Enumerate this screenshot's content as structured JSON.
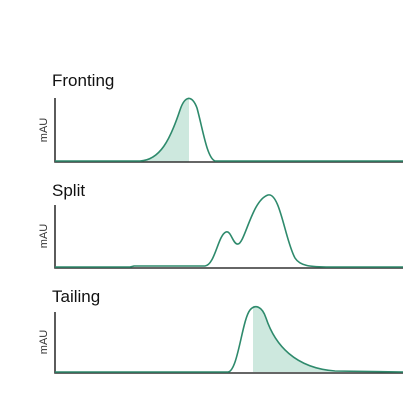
{
  "panels": [
    {
      "title": "Fronting",
      "y_label": "mAU"
    },
    {
      "title": "Split",
      "y_label": "mAU"
    },
    {
      "title": "Tailing",
      "y_label": "mAU"
    }
  ]
}
